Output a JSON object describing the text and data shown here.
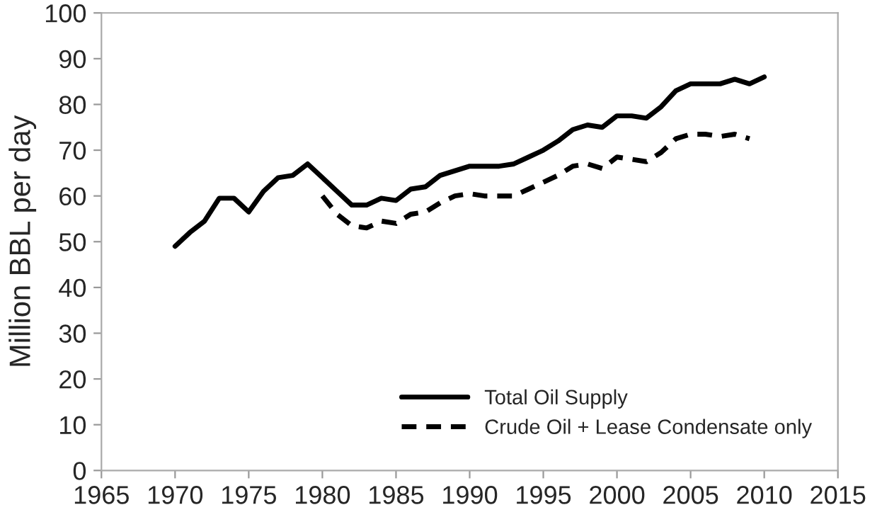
{
  "chart_data": {
    "type": "line",
    "ylabel": "Million BBL per day",
    "xlim": [
      1965,
      2015
    ],
    "xticks": [
      1965,
      1970,
      1975,
      1980,
      1985,
      1990,
      1995,
      2000,
      2005,
      2010,
      2015
    ],
    "ylim": [
      0,
      100
    ],
    "yticks": [
      0,
      10,
      20,
      30,
      40,
      50,
      60,
      70,
      80,
      90,
      100
    ],
    "grid": false,
    "legend": "bottom right",
    "marker": "none",
    "series": [
      {
        "name": "Total Oil Supply",
        "color": "#000000",
        "line_style": "solid",
        "x": [
          1970,
          1971,
          1972,
          1973,
          1974,
          1975,
          1976,
          1977,
          1978,
          1979,
          1980,
          1981,
          1982,
          1983,
          1984,
          1985,
          1986,
          1987,
          1988,
          1989,
          1990,
          1991,
          1992,
          1993,
          1994,
          1995,
          1996,
          1997,
          1998,
          1999,
          2000,
          2001,
          2002,
          2003,
          2004,
          2005,
          2006,
          2007,
          2008,
          2009,
          2010
        ],
        "values": [
          49,
          52,
          54.5,
          59.5,
          59.5,
          56.5,
          61,
          64,
          64.5,
          67,
          64,
          61,
          58,
          58,
          59.5,
          59,
          61.5,
          62,
          64.5,
          65.5,
          66.5,
          66.5,
          66.5,
          67,
          68.5,
          70,
          72,
          74.5,
          75.5,
          75,
          77.5,
          77.5,
          77,
          79.5,
          83,
          84.5,
          84.5,
          84.5,
          85.5,
          84.5,
          86
        ]
      },
      {
        "name": "Crude Oil + Lease Condensate only",
        "color": "#000000",
        "line_style": "dashed",
        "x": [
          1980,
          1981,
          1982,
          1983,
          1984,
          1985,
          1986,
          1987,
          1988,
          1989,
          1990,
          1991,
          1992,
          1993,
          1994,
          1995,
          1996,
          1997,
          1998,
          1999,
          2000,
          2001,
          2002,
          2003,
          2004,
          2005,
          2006,
          2007,
          2008,
          2009
        ],
        "values": [
          60,
          56,
          53.5,
          53,
          54.5,
          54,
          56,
          56.5,
          58.5,
          60,
          60.5,
          60,
          60,
          60,
          61.5,
          63,
          64.5,
          66.5,
          67,
          66,
          68.5,
          68,
          67.5,
          69.5,
          72.5,
          73.5,
          73.5,
          73,
          73.5,
          72.5
        ]
      }
    ]
  }
}
